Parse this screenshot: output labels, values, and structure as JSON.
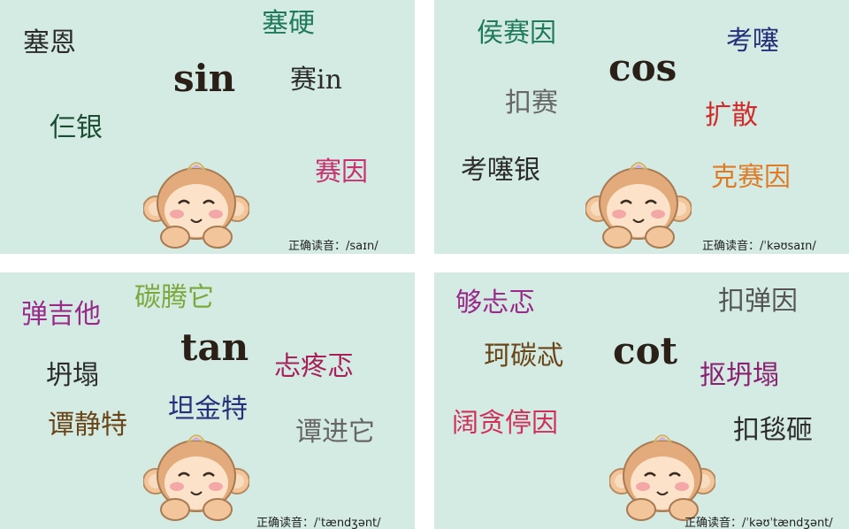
{
  "colors": {
    "panel_bg": "#d4ebe4"
  },
  "panels": [
    {
      "term": "sin",
      "words": [
        "塞恩",
        "塞硬",
        "赛in",
        "仨银",
        "赛因"
      ],
      "footer": "正确读音：/saɪn/"
    },
    {
      "term": "cos",
      "words": [
        "侯赛因",
        "考噻",
        "扣赛",
        "扩散",
        "考噻银",
        "克赛因"
      ],
      "footer": "正确读音：/ˈkəʊsaɪn/"
    },
    {
      "term": "tan",
      "words": [
        "弹吉他",
        "碳腾它",
        "坍塌",
        "忐疼忑",
        "谭静特",
        "坦金特",
        "谭进它"
      ],
      "footer": "正确读音：/ˈtændʒənt/"
    },
    {
      "term": "cot",
      "words": [
        "够忐忑",
        "扣弹因",
        "珂碳忒",
        "抠坍塌",
        "阔贪停因",
        "扣毯砸"
      ],
      "footer": "正确读音：/ˈkəʊˈtændʒənt/"
    }
  ],
  "mascot": "monkey-mascot-icon"
}
